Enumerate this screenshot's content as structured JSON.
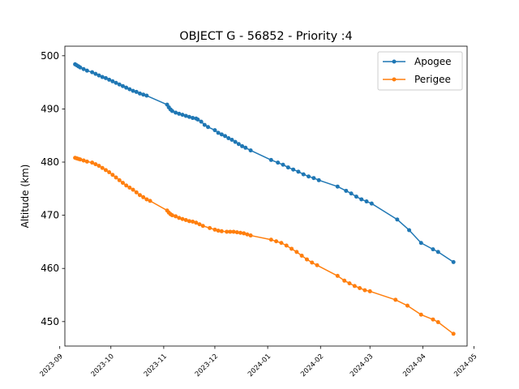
{
  "chart_data": {
    "type": "line",
    "title": "OBJECT G - 56852 - Priority :4",
    "xlabel": "",
    "ylabel": "Altitude (km)",
    "xlim": [
      "2023-09-04",
      "2024-04-27"
    ],
    "ylim": [
      445.4,
      501.8
    ],
    "x_ticks": [
      {
        "date": "2023-09-01",
        "label": "2023-09"
      },
      {
        "date": "2023-10-01",
        "label": "2023-10"
      },
      {
        "date": "2023-11-01",
        "label": "2023-11"
      },
      {
        "date": "2023-12-01",
        "label": "2023-12"
      },
      {
        "date": "2024-01-01",
        "label": "2024-01"
      },
      {
        "date": "2024-02-01",
        "label": "2024-02"
      },
      {
        "date": "2024-03-01",
        "label": "2024-03"
      },
      {
        "date": "2024-04-01",
        "label": "2024-04"
      },
      {
        "date": "2024-05-01",
        "label": "2024-05"
      }
    ],
    "y_ticks": [
      450,
      460,
      470,
      480,
      490,
      500
    ],
    "grid": false,
    "legend_position": "top-right",
    "series": [
      {
        "name": "Apogee",
        "color": "#1f77b4",
        "points": [
          [
            "2023-09-10",
            498.4
          ],
          [
            "2023-09-11",
            498.2
          ],
          [
            "2023-09-12",
            498.0
          ],
          [
            "2023-09-13",
            497.8
          ],
          [
            "2023-09-15",
            497.5
          ],
          [
            "2023-09-17",
            497.2
          ],
          [
            "2023-09-20",
            496.9
          ],
          [
            "2023-09-22",
            496.6
          ],
          [
            "2023-09-24",
            496.3
          ],
          [
            "2023-09-26",
            496.0
          ],
          [
            "2023-09-28",
            495.8
          ],
          [
            "2023-09-30",
            495.5
          ],
          [
            "2023-10-02",
            495.2
          ],
          [
            "2023-10-04",
            494.9
          ],
          [
            "2023-10-06",
            494.6
          ],
          [
            "2023-10-08",
            494.3
          ],
          [
            "2023-10-10",
            494.0
          ],
          [
            "2023-10-12",
            493.7
          ],
          [
            "2023-10-14",
            493.4
          ],
          [
            "2023-10-16",
            493.2
          ],
          [
            "2023-10-18",
            492.9
          ],
          [
            "2023-10-20",
            492.7
          ],
          [
            "2023-10-22",
            492.5
          ],
          [
            "2023-11-03",
            490.8
          ],
          [
            "2023-11-04",
            490.3
          ],
          [
            "2023-11-05",
            489.9
          ],
          [
            "2023-11-06",
            489.6
          ],
          [
            "2023-11-08",
            489.3
          ],
          [
            "2023-11-10",
            489.1
          ],
          [
            "2023-11-12",
            488.9
          ],
          [
            "2023-11-14",
            488.7
          ],
          [
            "2023-11-16",
            488.5
          ],
          [
            "2023-11-18",
            488.3
          ],
          [
            "2023-11-20",
            488.2
          ],
          [
            "2023-11-21",
            488.0
          ],
          [
            "2023-11-23",
            487.6
          ],
          [
            "2023-11-25",
            487.0
          ],
          [
            "2023-11-27",
            486.6
          ],
          [
            "2023-12-01",
            486.0
          ],
          [
            "2023-12-03",
            485.5
          ],
          [
            "2023-12-05",
            485.2
          ],
          [
            "2023-12-07",
            484.9
          ],
          [
            "2023-12-09",
            484.5
          ],
          [
            "2023-12-11",
            484.2
          ],
          [
            "2023-12-13",
            483.8
          ],
          [
            "2023-12-15",
            483.4
          ],
          [
            "2023-12-17",
            483.0
          ],
          [
            "2023-12-19",
            482.7
          ],
          [
            "2023-12-22",
            482.2
          ],
          [
            "2024-01-03",
            480.4
          ],
          [
            "2024-01-07",
            479.9
          ],
          [
            "2024-01-10",
            479.5
          ],
          [
            "2024-01-13",
            479.0
          ],
          [
            "2024-01-16",
            478.6
          ],
          [
            "2024-01-19",
            478.2
          ],
          [
            "2024-01-22",
            477.7
          ],
          [
            "2024-01-25",
            477.3
          ],
          [
            "2024-01-28",
            477.0
          ],
          [
            "2024-01-31",
            476.6
          ],
          [
            "2024-02-11",
            475.4
          ],
          [
            "2024-02-16",
            474.6
          ],
          [
            "2024-02-19",
            474.1
          ],
          [
            "2024-02-22",
            473.5
          ],
          [
            "2024-02-25",
            473.0
          ],
          [
            "2024-02-28",
            472.6
          ],
          [
            "2024-03-02",
            472.2
          ],
          [
            "2024-03-17",
            469.2
          ],
          [
            "2024-03-24",
            467.2
          ],
          [
            "2024-03-31",
            464.8
          ],
          [
            "2024-04-07",
            463.6
          ],
          [
            "2024-04-10",
            463.1
          ],
          [
            "2024-04-19",
            461.2
          ]
        ]
      },
      {
        "name": "Perigee",
        "color": "#ff7f0e",
        "points": [
          [
            "2023-09-10",
            480.8
          ],
          [
            "2023-09-11",
            480.7
          ],
          [
            "2023-09-12",
            480.6
          ],
          [
            "2023-09-13",
            480.5
          ],
          [
            "2023-09-15",
            480.3
          ],
          [
            "2023-09-17",
            480.1
          ],
          [
            "2023-09-20",
            479.9
          ],
          [
            "2023-09-22",
            479.6
          ],
          [
            "2023-09-24",
            479.3
          ],
          [
            "2023-09-26",
            478.9
          ],
          [
            "2023-09-28",
            478.5
          ],
          [
            "2023-09-30",
            478.1
          ],
          [
            "2023-10-02",
            477.6
          ],
          [
            "2023-10-04",
            477.1
          ],
          [
            "2023-10-06",
            476.6
          ],
          [
            "2023-10-08",
            476.1
          ],
          [
            "2023-10-10",
            475.6
          ],
          [
            "2023-10-12",
            475.2
          ],
          [
            "2023-10-14",
            474.8
          ],
          [
            "2023-10-16",
            474.3
          ],
          [
            "2023-10-18",
            473.8
          ],
          [
            "2023-10-20",
            473.4
          ],
          [
            "2023-10-22",
            473.0
          ],
          [
            "2023-10-24",
            472.7
          ],
          [
            "2023-11-03",
            470.9
          ],
          [
            "2023-11-04",
            470.5
          ],
          [
            "2023-11-05",
            470.2
          ],
          [
            "2023-11-06",
            470.0
          ],
          [
            "2023-11-08",
            469.8
          ],
          [
            "2023-11-10",
            469.5
          ],
          [
            "2023-11-12",
            469.3
          ],
          [
            "2023-11-14",
            469.1
          ],
          [
            "2023-11-16",
            468.9
          ],
          [
            "2023-11-18",
            468.8
          ],
          [
            "2023-11-20",
            468.6
          ],
          [
            "2023-11-22",
            468.3
          ],
          [
            "2023-11-24",
            468.0
          ],
          [
            "2023-11-28",
            467.6
          ],
          [
            "2023-12-01",
            467.3
          ],
          [
            "2023-12-03",
            467.1
          ],
          [
            "2023-12-05",
            467.0
          ],
          [
            "2023-12-08",
            466.9
          ],
          [
            "2023-12-10",
            466.9
          ],
          [
            "2023-12-12",
            466.9
          ],
          [
            "2023-12-14",
            466.8
          ],
          [
            "2023-12-16",
            466.7
          ],
          [
            "2023-12-18",
            466.6
          ],
          [
            "2023-12-20",
            466.4
          ],
          [
            "2023-12-22",
            466.2
          ],
          [
            "2024-01-03",
            465.4
          ],
          [
            "2024-01-06",
            465.1
          ],
          [
            "2024-01-09",
            464.8
          ],
          [
            "2024-01-12",
            464.3
          ],
          [
            "2024-01-15",
            463.7
          ],
          [
            "2024-01-18",
            463.1
          ],
          [
            "2024-01-21",
            462.4
          ],
          [
            "2024-01-24",
            461.7
          ],
          [
            "2024-01-27",
            461.1
          ],
          [
            "2024-01-30",
            460.6
          ],
          [
            "2024-02-11",
            458.6
          ],
          [
            "2024-02-15",
            457.7
          ],
          [
            "2024-02-18",
            457.2
          ],
          [
            "2024-02-21",
            456.7
          ],
          [
            "2024-02-24",
            456.3
          ],
          [
            "2024-02-27",
            455.9
          ],
          [
            "2024-03-01",
            455.7
          ],
          [
            "2024-03-16",
            454.1
          ],
          [
            "2024-03-23",
            453.0
          ],
          [
            "2024-03-31",
            451.3
          ],
          [
            "2024-04-07",
            450.4
          ],
          [
            "2024-04-10",
            449.9
          ],
          [
            "2024-04-19",
            447.7
          ]
        ]
      }
    ]
  }
}
